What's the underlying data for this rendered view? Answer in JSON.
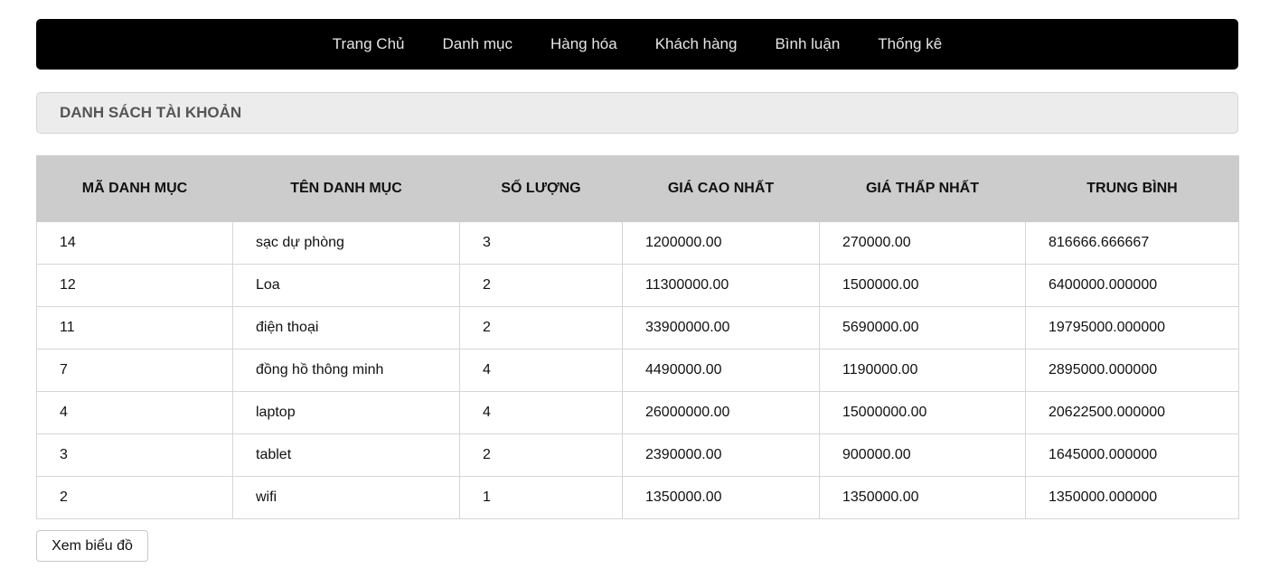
{
  "nav": {
    "items": [
      {
        "label": "Trang Chủ"
      },
      {
        "label": "Danh mục"
      },
      {
        "label": "Hàng hóa"
      },
      {
        "label": "Khách hàng"
      },
      {
        "label": "Bình luận"
      },
      {
        "label": "Thống kê"
      }
    ]
  },
  "section": {
    "title": "DANH SÁCH TÀI KHOẢN"
  },
  "table": {
    "headers": [
      "MÃ DANH MỤC",
      "TÊN DANH MỤC",
      "SỐ LƯỢNG",
      "GIÁ CAO NHẤT",
      "GIÁ THẤP NHẤT",
      "TRUNG BÌNH"
    ],
    "rows": [
      [
        "14",
        "sạc dự phòng",
        "3",
        "1200000.00",
        "270000.00",
        "816666.666667"
      ],
      [
        "12",
        "Loa",
        "2",
        "11300000.00",
        "1500000.00",
        "6400000.000000"
      ],
      [
        "11",
        "điện thoại",
        "2",
        "33900000.00",
        "5690000.00",
        "19795000.000000"
      ],
      [
        "7",
        "đồng hồ thông minh",
        "4",
        "4490000.00",
        "1190000.00",
        "2895000.000000"
      ],
      [
        "4",
        "laptop",
        "4",
        "26000000.00",
        "15000000.00",
        "20622500.000000"
      ],
      [
        "3",
        "tablet",
        "2",
        "2390000.00",
        "900000.00",
        "1645000.000000"
      ],
      [
        "2",
        "wifi",
        "1",
        "1350000.00",
        "1350000.00",
        "1350000.000000"
      ]
    ]
  },
  "actions": {
    "chart_button": "Xem biểu đồ"
  }
}
